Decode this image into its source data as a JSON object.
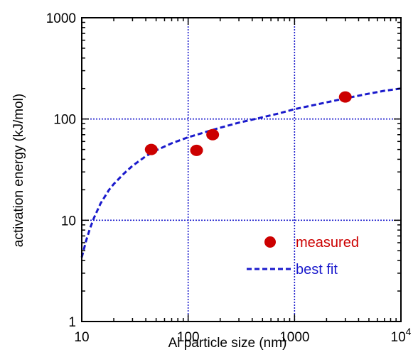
{
  "chart_data": {
    "type": "scatter",
    "title": "",
    "xlabel": "Al particle size (nm)",
    "ylabel": "activation energy (kJ/mol)",
    "xscale": "log",
    "yscale": "log",
    "xlim": [
      10,
      10000
    ],
    "ylim": [
      1,
      1000
    ],
    "grid": "major, dotted blue",
    "legend_position": "lower-right",
    "x_ticks": [
      {
        "value": 10,
        "label": "10"
      },
      {
        "value": 100,
        "label": "100"
      },
      {
        "value": 1000,
        "label": "1000"
      },
      {
        "value": 10000,
        "label": "10",
        "exp": "4"
      }
    ],
    "y_ticks": [
      {
        "value": 1,
        "label": "1"
      },
      {
        "value": 10,
        "label": "10"
      },
      {
        "value": 100,
        "label": "100"
      },
      {
        "value": 1000,
        "label": "1000"
      }
    ],
    "series": [
      {
        "name": "measured",
        "kind": "scatter",
        "color": "#cc0000",
        "points": [
          {
            "x": 45,
            "y": 50
          },
          {
            "x": 120,
            "y": 49
          },
          {
            "x": 170,
            "y": 70
          },
          {
            "x": 3000,
            "y": 165
          }
        ]
      },
      {
        "name": "best fit",
        "kind": "line",
        "style": "dashed",
        "color": "#1a1acc",
        "points": [
          {
            "x": 10,
            "y": 4.3
          },
          {
            "x": 11,
            "y": 6.3
          },
          {
            "x": 12,
            "y": 8.4
          },
          {
            "x": 13,
            "y": 10.5
          },
          {
            "x": 15,
            "y": 14.6
          },
          {
            "x": 18,
            "y": 19.9
          },
          {
            "x": 20,
            "y": 22.8
          },
          {
            "x": 25,
            "y": 29.0
          },
          {
            "x": 30,
            "y": 34.5
          },
          {
            "x": 40,
            "y": 42.9
          },
          {
            "x": 50,
            "y": 49.0
          },
          {
            "x": 70,
            "y": 57.6
          },
          {
            "x": 100,
            "y": 66.0
          },
          {
            "x": 150,
            "y": 75.0
          },
          {
            "x": 200,
            "y": 82.0
          },
          {
            "x": 300,
            "y": 92.0
          },
          {
            "x": 500,
            "y": 104.0
          },
          {
            "x": 700,
            "y": 113.0
          },
          {
            "x": 1000,
            "y": 125.0
          },
          {
            "x": 1500,
            "y": 137.0
          },
          {
            "x": 2000,
            "y": 146.0
          },
          {
            "x": 3000,
            "y": 160.0
          },
          {
            "x": 5000,
            "y": 178.0
          },
          {
            "x": 7000,
            "y": 190.0
          },
          {
            "x": 10000,
            "y": 200.0
          }
        ]
      }
    ]
  }
}
